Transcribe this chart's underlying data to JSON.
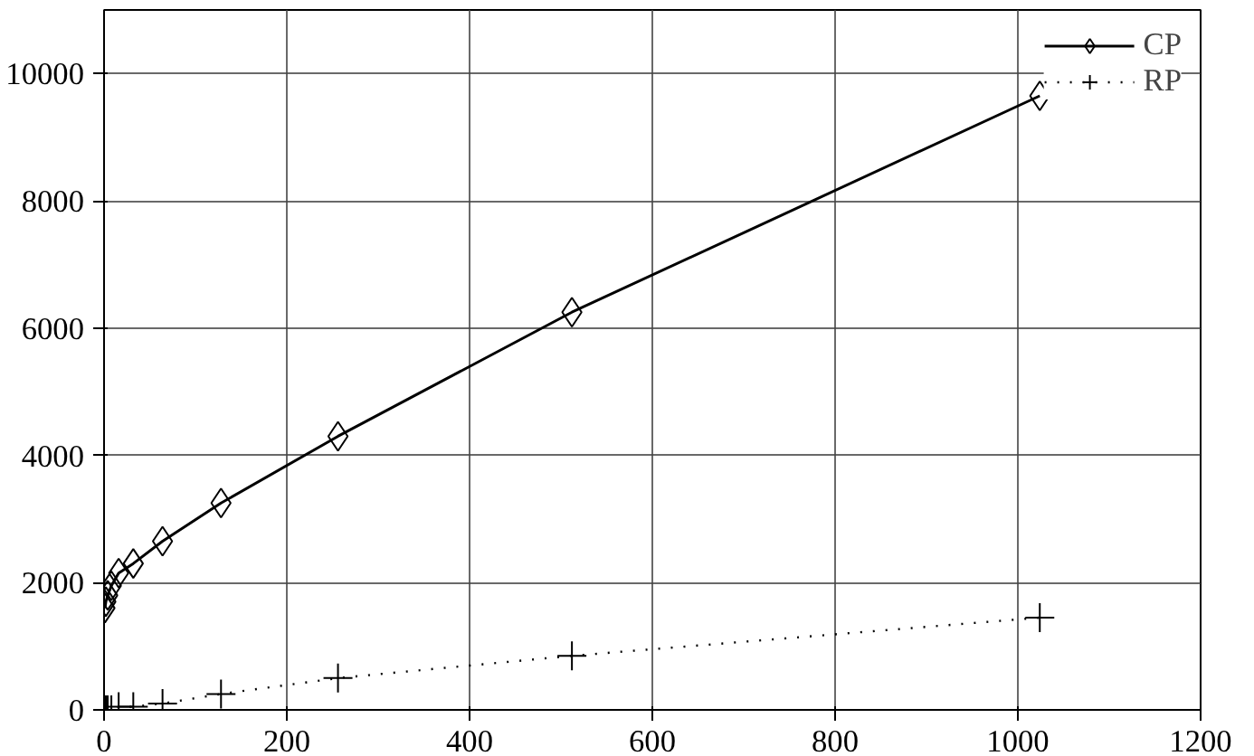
{
  "chart_data": {
    "type": "line",
    "xlim": [
      0,
      1200
    ],
    "ylim": [
      0,
      11000
    ],
    "xticks": [
      0,
      200,
      400,
      600,
      800,
      1000,
      1200
    ],
    "yticks": [
      0,
      2000,
      4000,
      6000,
      8000,
      10000
    ],
    "grid": true,
    "legend": "top right",
    "series": [
      {
        "name": "CP",
        "color": "#000000",
        "marker": "diamond",
        "line_style": "solid",
        "x": [
          1,
          2,
          4,
          8,
          16,
          32,
          64,
          128,
          256,
          512,
          1024
        ],
        "values": [
          1600,
          1700,
          1800,
          1950,
          2150,
          2300,
          2650,
          3250,
          4300,
          6250,
          9650
        ]
      },
      {
        "name": "RP",
        "color": "#000000",
        "marker": "cross",
        "line_style": "dotted",
        "x": [
          1,
          2,
          4,
          8,
          16,
          32,
          64,
          128,
          256,
          512,
          1024
        ],
        "values": [
          0,
          0,
          0,
          0,
          50,
          50,
          100,
          250,
          500,
          850,
          1450
        ]
      }
    ]
  }
}
